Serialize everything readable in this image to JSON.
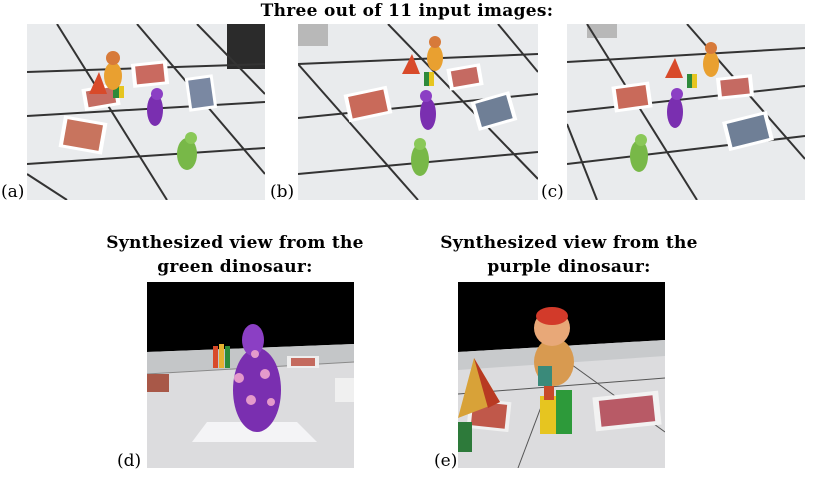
{
  "figure": {
    "top_title": "Three out of 11 input images:",
    "input_labels": [
      "(a)",
      "(b)",
      "(c)"
    ],
    "synth_green_title": [
      "Synthesized view from the",
      "green dinosaur:"
    ],
    "synth_purple_title": [
      "Synthesized view from the",
      "purple dinosaur:"
    ],
    "synth_labels": [
      "(d)",
      "(e)"
    ]
  },
  "colors": {
    "floor": "#eceef0",
    "grout": "#2a2a2a",
    "purple": "#7a2fb0",
    "green": "#78b848",
    "sky": "#000000"
  }
}
